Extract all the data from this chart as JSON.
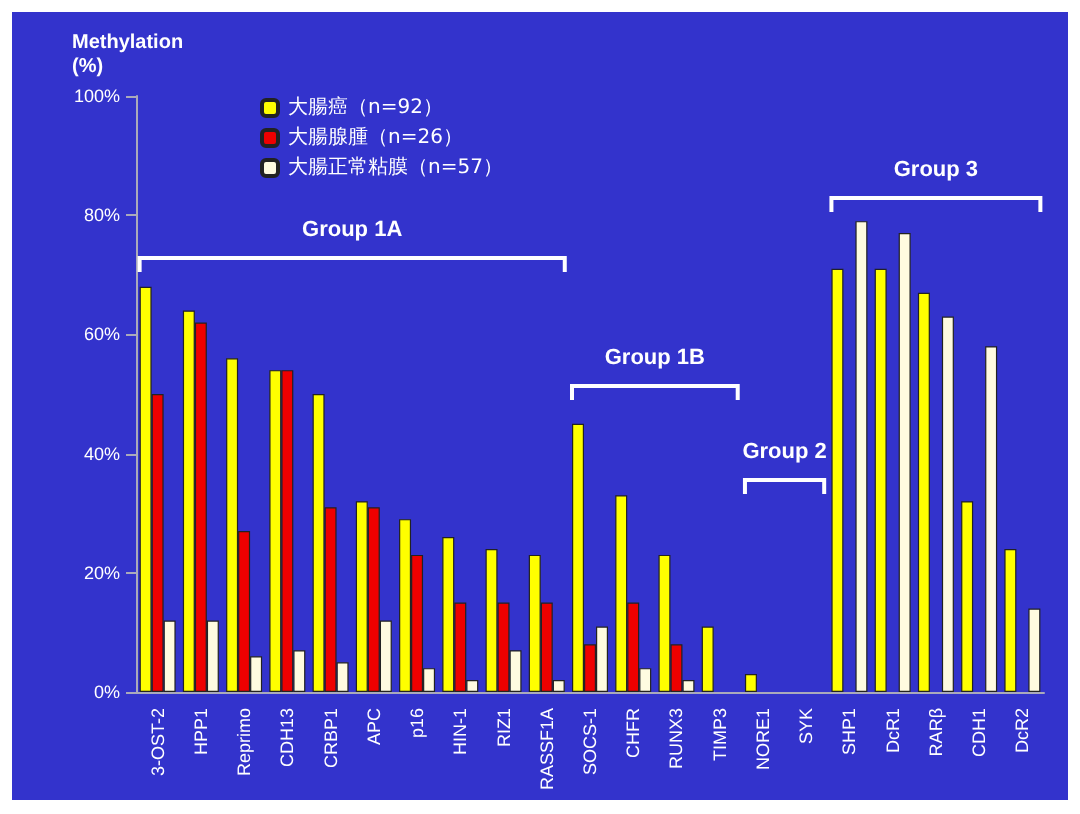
{
  "chart_data": {
    "type": "bar",
    "ylabel": "Methylation\n(%)",
    "categories": [
      "3-OST-2",
      "HPP1",
      "Reprimo",
      "CDH13",
      "CRBP1",
      "APC",
      "p16",
      "HIN-1",
      "RIZ1",
      "RASSF1A",
      "SOCS-1",
      "CHFR",
      "RUNX3",
      "TIMP3",
      "NORE1",
      "SYK",
      "SHP1",
      "DcR1",
      "RARβ",
      "CDH1",
      "DcR2"
    ],
    "series": [
      {
        "name": "大腸癌（n=92）",
        "color": "#ffff00",
        "values": [
          68,
          64,
          56,
          54,
          50,
          32,
          29,
          26,
          24,
          23,
          45,
          33,
          23,
          11,
          3,
          null,
          71,
          71,
          67,
          32,
          24
        ]
      },
      {
        "name": "大腸腺腫（n=26）",
        "color": "#ee0000",
        "values": [
          50,
          62,
          27,
          54,
          31,
          31,
          23,
          15,
          15,
          15,
          8,
          15,
          8,
          null,
          null,
          null,
          null,
          null,
          null,
          null,
          null
        ]
      },
      {
        "name": "大腸正常粘膜（n=57）",
        "color": "#fffbe0",
        "values": [
          12,
          12,
          6,
          7,
          5,
          12,
          4,
          2,
          7,
          2,
          11,
          4,
          2,
          null,
          null,
          null,
          79,
          77,
          63,
          58,
          14
        ]
      }
    ],
    "ylim": [
      0,
      100
    ],
    "yticks": [
      {
        "value": 0,
        "label": "0%"
      },
      {
        "value": 20,
        "label": "20%"
      },
      {
        "value": 40,
        "label": "40%"
      },
      {
        "value": 60,
        "label": "60%"
      },
      {
        "value": 80,
        "label": "80%"
      },
      {
        "value": 100,
        "label": "100%"
      }
    ],
    "grid": false,
    "legend": "top left",
    "annotations": [
      "Group 1A",
      "Group 1B",
      "Group 2",
      "Group 3"
    ]
  }
}
